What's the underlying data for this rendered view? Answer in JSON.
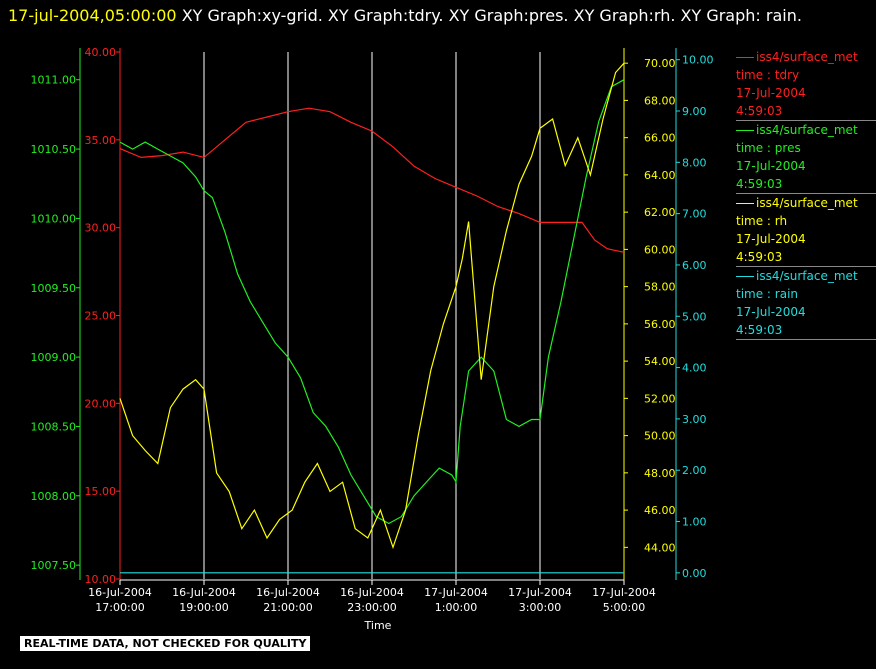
{
  "header": {
    "timestamp": "17-jul-2004,05:00:00",
    "graphs": " XY Graph:xy-grid.  XY Graph:tdry.  XY Graph:pres.  XY Graph:rh.  XY Graph: rain."
  },
  "disclaimer": "REAL-TIME DATA, NOT CHECKED FOR QUALITY",
  "colors": {
    "tdry": "#ff2020",
    "pres": "#22ee22",
    "rh": "#ffff00",
    "rain": "#22dddd",
    "grid": "#ffffff"
  },
  "chart_data": {
    "type": "line",
    "xlabel": "Time",
    "x_ticks": [
      {
        "date": "16-Jul-2004",
        "time": "17:00:00"
      },
      {
        "date": "16-Jul-2004",
        "time": "19:00:00"
      },
      {
        "date": "16-Jul-2004",
        "time": "21:00:00"
      },
      {
        "date": "16-Jul-2004",
        "time": "23:00:00"
      },
      {
        "date": "17-Jul-2004",
        "time": "1:00:00"
      },
      {
        "date": "17-Jul-2004",
        "time": "3:00:00"
      },
      {
        "date": "17-Jul-2004",
        "time": "5:00:00"
      }
    ],
    "x_hours": [
      17,
      19,
      21,
      23,
      25,
      27,
      29
    ],
    "xlim_hours": [
      17,
      29
    ],
    "grid": true,
    "axes": {
      "pres": {
        "ylim": [
          1007.4,
          1011.2
        ],
        "ticks": [
          "1007.50",
          "1008.00",
          "1008.50",
          "1009.00",
          "1009.50",
          "1010.00",
          "1010.50",
          "1011.00"
        ]
      },
      "tdry": {
        "ylim": [
          10,
          40
        ],
        "ticks": [
          "10.00",
          "15.00",
          "20.00",
          "25.00",
          "30.00",
          "35.00",
          "40.00"
        ]
      },
      "rh": {
        "ylim": [
          42.3,
          70.6
        ],
        "ticks": [
          "44.00",
          "46.00",
          "48.00",
          "50.00",
          "52.00",
          "54.00",
          "56.00",
          "58.00",
          "60.00",
          "62.00",
          "64.00",
          "66.00",
          "68.00",
          "70.00"
        ]
      },
      "rain": {
        "ylim": [
          -0.12,
          10.15
        ],
        "ticks": [
          "0.00",
          "1.00",
          "2.00",
          "3.00",
          "4.00",
          "5.00",
          "6.00",
          "7.00",
          "8.00",
          "9.00",
          "10.00"
        ]
      }
    },
    "series": [
      {
        "name": "iss4/surface_met",
        "field": "time : tdry",
        "date": "17-Jul-2004",
        "time": "4:59:03",
        "key": "tdry",
        "x": [
          17.0,
          17.5,
          18.0,
          18.5,
          19.0,
          19.5,
          20.0,
          20.5,
          21.0,
          21.5,
          22.0,
          22.5,
          23.0,
          23.5,
          24.0,
          24.5,
          25.0,
          25.5,
          26.0,
          26.5,
          27.0,
          27.5,
          28.0,
          28.3,
          28.6,
          29.0
        ],
        "values": [
          34.5,
          34.0,
          34.1,
          34.3,
          34.0,
          35.0,
          36.0,
          36.3,
          36.6,
          36.8,
          36.6,
          36.0,
          35.5,
          34.6,
          33.5,
          32.8,
          32.3,
          31.8,
          31.2,
          30.8,
          30.3,
          30.3,
          30.3,
          29.3,
          28.8,
          28.6
        ]
      },
      {
        "name": "iss4/surface_met",
        "field": "time : pres",
        "date": "17-Jul-2004",
        "time": "4:59:03",
        "key": "pres",
        "x": [
          17.0,
          17.3,
          17.6,
          17.9,
          18.2,
          18.5,
          18.8,
          19.0,
          19.2,
          19.5,
          19.8,
          20.1,
          20.4,
          20.7,
          21.0,
          21.3,
          21.6,
          21.9,
          22.2,
          22.5,
          22.8,
          23.1,
          23.4,
          23.7,
          24.0,
          24.3,
          24.6,
          24.9,
          25.0,
          25.1,
          25.3,
          25.6,
          25.9,
          26.2,
          26.5,
          26.8,
          27.0,
          27.2,
          27.5,
          27.8,
          28.1,
          28.4,
          28.7,
          29.0
        ],
        "values": [
          1010.55,
          1010.5,
          1010.55,
          1010.5,
          1010.45,
          1010.4,
          1010.3,
          1010.2,
          1010.15,
          1009.9,
          1009.6,
          1009.4,
          1009.25,
          1009.1,
          1009.0,
          1008.85,
          1008.6,
          1008.5,
          1008.35,
          1008.15,
          1008.0,
          1007.85,
          1007.8,
          1007.85,
          1008.0,
          1008.1,
          1008.2,
          1008.15,
          1008.1,
          1008.5,
          1008.9,
          1009.0,
          1008.9,
          1008.55,
          1008.5,
          1008.55,
          1008.55,
          1009.0,
          1009.4,
          1009.85,
          1010.3,
          1010.7,
          1010.95,
          1011.0
        ]
      },
      {
        "name": "iss4/surface_met",
        "field": "time : rh",
        "date": "17-Jul-2004",
        "time": "4:59:03",
        "key": "rh",
        "x": [
          17.0,
          17.3,
          17.6,
          17.9,
          18.2,
          18.5,
          18.8,
          19.0,
          19.3,
          19.6,
          19.9,
          20.2,
          20.5,
          20.8,
          21.1,
          21.4,
          21.7,
          22.0,
          22.3,
          22.6,
          22.9,
          23.2,
          23.5,
          23.8,
          24.1,
          24.4,
          24.7,
          25.0,
          25.15,
          25.3,
          25.6,
          25.9,
          26.2,
          26.5,
          26.8,
          27.0,
          27.3,
          27.6,
          27.9,
          28.2,
          28.5,
          28.8,
          29.0
        ],
        "values": [
          52.0,
          50.0,
          49.2,
          48.5,
          51.5,
          52.5,
          53.0,
          52.5,
          48.0,
          47.0,
          45.0,
          46.0,
          44.5,
          45.5,
          46.0,
          47.5,
          48.5,
          47.0,
          47.5,
          45.0,
          44.5,
          46.0,
          44.0,
          46.0,
          50.0,
          53.5,
          56.0,
          58.0,
          59.5,
          61.5,
          53.0,
          58.0,
          61.0,
          63.5,
          65.0,
          66.5,
          67.0,
          64.5,
          66.0,
          64.0,
          67.0,
          69.5,
          70.0
        ]
      },
      {
        "name": "iss4/surface_met",
        "field": "time : rain",
        "date": "17-Jul-2004",
        "time": "4:59:03",
        "key": "rain",
        "x": [
          17.0,
          29.0
        ],
        "values": [
          0.0,
          0.0
        ]
      }
    ]
  }
}
